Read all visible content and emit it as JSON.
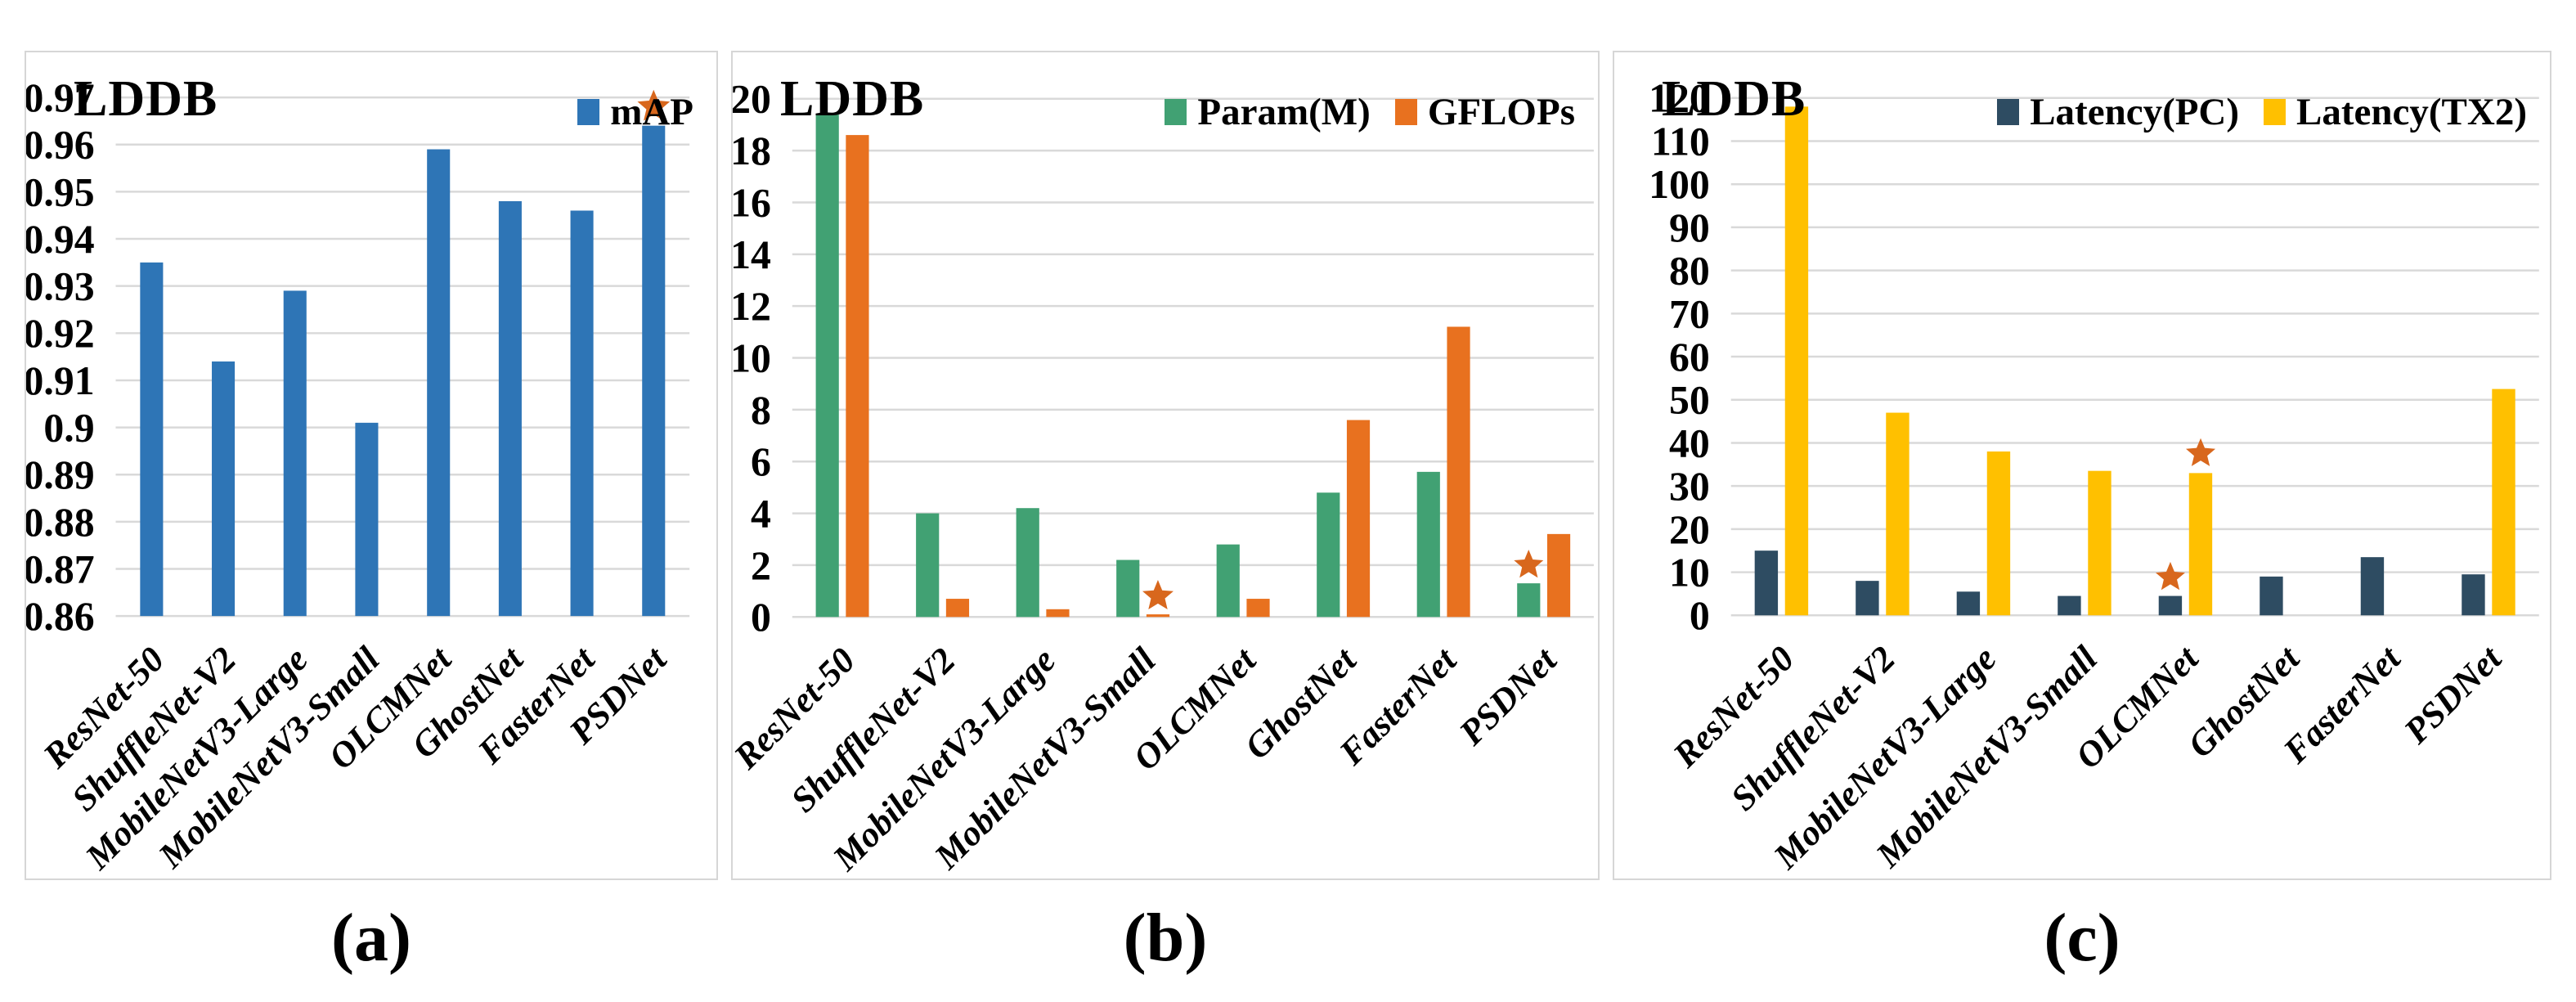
{
  "panels": [
    {
      "title": "LDDB",
      "caption": "(a)"
    },
    {
      "title": "LDDB",
      "caption": "(b)"
    },
    {
      "title": "LDDB",
      "caption": "(c)"
    }
  ],
  "star_color": "#D8671D",
  "chart_data": [
    {
      "type": "bar",
      "title": "LDDB",
      "xlabel": "",
      "ylabel": "",
      "grid": true,
      "legend_position": "top-right",
      "categories": [
        "ResNet-50",
        "ShuffleNet-V2",
        "MobileNetV3-Large",
        "MobileNetV3-Small",
        "OLCMNet",
        "GhostNet",
        "FasterNet",
        "PSDNet"
      ],
      "series": [
        {
          "name": "mAP",
          "color": "#2E75B6",
          "values": [
            0.935,
            0.914,
            0.929,
            0.901,
            0.959,
            0.948,
            0.946,
            0.964
          ]
        }
      ],
      "ylim": [
        0.86,
        0.97
      ],
      "yticks": [
        {
          "v": 0.97,
          "label": "0.97"
        },
        {
          "v": 0.96,
          "label": "0.96"
        },
        {
          "v": 0.95,
          "label": "0.95"
        },
        {
          "v": 0.94,
          "label": "0.94"
        },
        {
          "v": 0.93,
          "label": "0.93"
        },
        {
          "v": 0.92,
          "label": "0.92"
        },
        {
          "v": 0.91,
          "label": "0.91"
        },
        {
          "v": 0.9,
          "label": "0.9"
        },
        {
          "v": 0.89,
          "label": "0.89"
        },
        {
          "v": 0.88,
          "label": "0.88"
        },
        {
          "v": 0.87,
          "label": "0.87"
        },
        {
          "v": 0.86,
          "label": "0.86"
        }
      ],
      "annotations": [
        {
          "shape": "star",
          "category": "PSDNet",
          "series": "mAP",
          "y": 0.968,
          "size": 21
        }
      ]
    },
    {
      "type": "bar",
      "title": "LDDB",
      "xlabel": "",
      "ylabel": "",
      "grid": true,
      "legend_position": "top-right",
      "categories": [
        "ResNet-50",
        "ShuffleNet-V2",
        "MobileNetV3-Large",
        "MobileNetV3-Small",
        "OLCMNet",
        "GhostNet",
        "FasterNet",
        "PSDNet"
      ],
      "series": [
        {
          "name": "Param(M)",
          "color": "#41A173",
          "values": [
            19.4,
            4.0,
            4.2,
            2.2,
            2.8,
            4.8,
            5.6,
            1.3
          ]
        },
        {
          "name": "GFLOPs",
          "color": "#E8711F",
          "values": [
            18.6,
            0.7,
            0.3,
            0.1,
            0.7,
            7.6,
            11.2,
            3.2
          ]
        }
      ],
      "ylim": [
        0,
        20
      ],
      "yticks": [
        {
          "v": 20,
          "label": "20"
        },
        {
          "v": 18,
          "label": "18"
        },
        {
          "v": 16,
          "label": "16"
        },
        {
          "v": 14,
          "label": "14"
        },
        {
          "v": 12,
          "label": "12"
        },
        {
          "v": 10,
          "label": "10"
        },
        {
          "v": 8,
          "label": "8"
        },
        {
          "v": 6,
          "label": "6"
        },
        {
          "v": 4,
          "label": "4"
        },
        {
          "v": 2,
          "label": "2"
        },
        {
          "v": 0,
          "label": "0"
        }
      ],
      "annotations": [
        {
          "shape": "star",
          "category": "MobileNetV3-Small",
          "series": "GFLOPs",
          "y": 0.8,
          "size": 20
        },
        {
          "shape": "star",
          "category": "PSDNet",
          "series": "Param(M)",
          "y": 2.0,
          "size": 19
        }
      ]
    },
    {
      "type": "bar",
      "title": "LDDB",
      "xlabel": "",
      "ylabel": "",
      "grid": true,
      "legend_position": "top-right",
      "categories": [
        "ResNet-50",
        "ShuffleNet-V2",
        "MobileNetV3-Large",
        "MobileNetV3-Small",
        "OLCMNet",
        "GhostNet",
        "FasterNet",
        "PSDNet"
      ],
      "series": [
        {
          "name": "Latency(PC)",
          "color": "#2E4C62",
          "values": [
            15,
            8,
            5.5,
            4.5,
            4.5,
            9,
            13.5,
            9.5
          ]
        },
        {
          "name": "Latency(TX2)",
          "color": "#FFC000",
          "values": [
            118,
            47,
            38,
            33.5,
            33,
            0,
            0,
            52.5
          ]
        }
      ],
      "ylim": [
        0,
        120
      ],
      "yticks": [
        {
          "v": 120,
          "label": "120"
        },
        {
          "v": 110,
          "label": "110"
        },
        {
          "v": 100,
          "label": "100"
        },
        {
          "v": 90,
          "label": "90"
        },
        {
          "v": 80,
          "label": "80"
        },
        {
          "v": 70,
          "label": "70"
        },
        {
          "v": 60,
          "label": "60"
        },
        {
          "v": 50,
          "label": "50"
        },
        {
          "v": 40,
          "label": "40"
        },
        {
          "v": 30,
          "label": "30"
        },
        {
          "v": 20,
          "label": "20"
        },
        {
          "v": 10,
          "label": "10"
        },
        {
          "v": 0,
          "label": "0"
        }
      ],
      "annotations": [
        {
          "shape": "star",
          "category": "OLCMNet",
          "series": "Latency(PC)",
          "y": 8.8,
          "size": 19
        },
        {
          "shape": "star",
          "category": "OLCMNet",
          "series": "Latency(TX2)",
          "y": 37.5,
          "size": 19
        }
      ]
    }
  ]
}
